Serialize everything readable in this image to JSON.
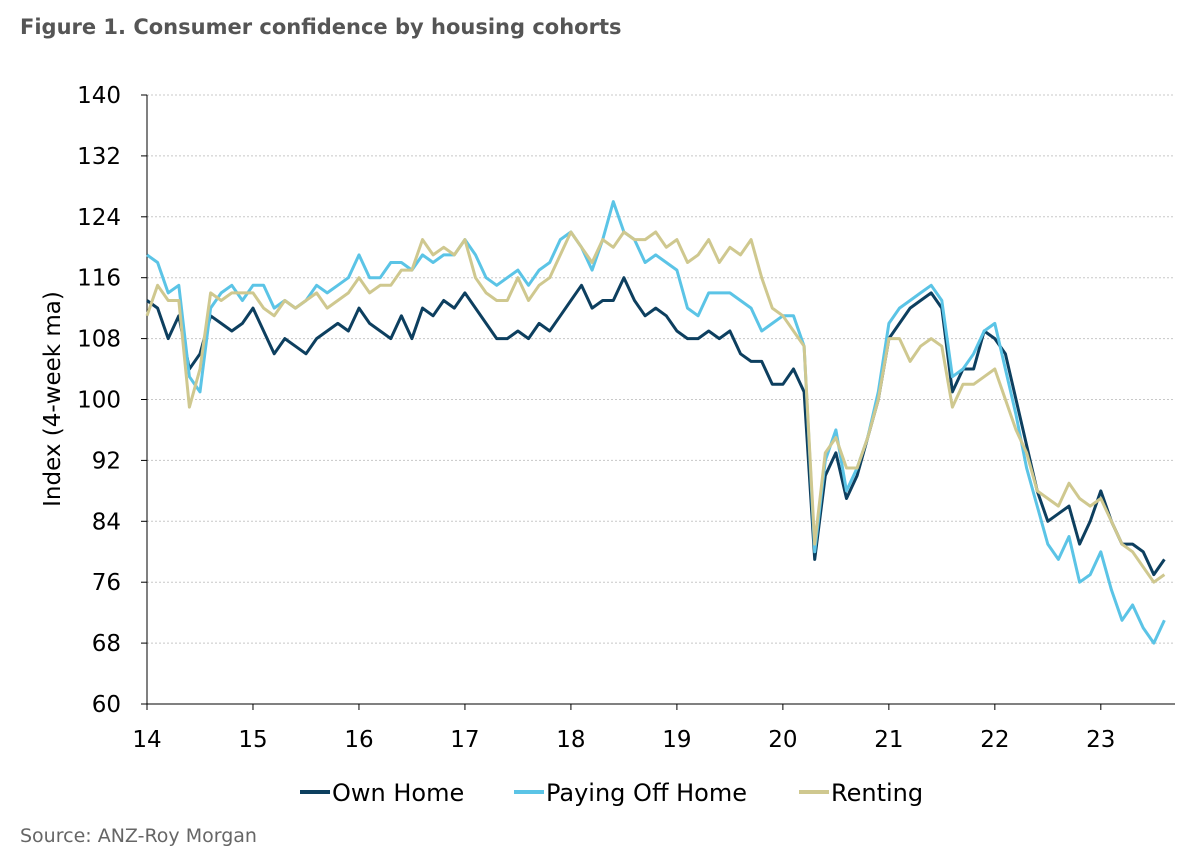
{
  "chart_data": {
    "type": "line",
    "title": "Figure 1. Consumer confidence by housing cohorts",
    "y_label": "Index (4-week ma)",
    "source": "Source: ANZ-Roy Morgan",
    "x": [
      14.0,
      14.1,
      14.2,
      14.3,
      14.4,
      14.5,
      14.6,
      14.7,
      14.8,
      14.9,
      15.0,
      15.1,
      15.2,
      15.3,
      15.4,
      15.5,
      15.6,
      15.7,
      15.8,
      15.9,
      16.0,
      16.1,
      16.2,
      16.3,
      16.4,
      16.5,
      16.6,
      16.7,
      16.8,
      16.9,
      17.0,
      17.1,
      17.2,
      17.3,
      17.4,
      17.5,
      17.6,
      17.7,
      17.8,
      17.9,
      18.0,
      18.1,
      18.2,
      18.3,
      18.4,
      18.5,
      18.6,
      18.7,
      18.8,
      18.9,
      19.0,
      19.1,
      19.2,
      19.3,
      19.4,
      19.5,
      19.6,
      19.7,
      19.8,
      19.9,
      20.0,
      20.1,
      20.2,
      20.3,
      20.4,
      20.5,
      20.6,
      20.7,
      20.8,
      20.9,
      21.0,
      21.1,
      21.2,
      21.3,
      21.4,
      21.5,
      21.6,
      21.7,
      21.8,
      21.9,
      22.0,
      22.1,
      22.2,
      22.3,
      22.4,
      22.5,
      22.6,
      22.7,
      22.8,
      22.9,
      23.0,
      23.1,
      23.2,
      23.3,
      23.4,
      23.5,
      23.6
    ],
    "series": [
      {
        "name": "Own Home",
        "color": "#0d3f5f",
        "values": [
          113,
          112,
          108,
          111,
          104,
          106,
          111,
          110,
          109,
          110,
          112,
          109,
          106,
          108,
          107,
          106,
          108,
          109,
          110,
          109,
          112,
          110,
          109,
          108,
          111,
          108,
          112,
          111,
          113,
          112,
          114,
          112,
          110,
          108,
          108,
          109,
          108,
          110,
          109,
          111,
          113,
          115,
          112,
          113,
          113,
          116,
          113,
          111,
          112,
          111,
          109,
          108,
          108,
          109,
          108,
          109,
          106,
          105,
          105,
          102,
          102,
          104,
          101,
          79,
          90,
          93,
          87,
          90,
          95,
          100,
          108,
          110,
          112,
          113,
          114,
          112,
          101,
          104,
          104,
          109,
          108,
          106,
          100,
          94,
          88,
          84,
          85,
          86,
          81,
          84,
          88,
          84,
          81,
          81,
          80,
          77,
          79
        ]
      },
      {
        "name": "Paying Off Home",
        "color": "#5bc4e6",
        "values": [
          119,
          118,
          114,
          115,
          103,
          101,
          112,
          114,
          115,
          113,
          115,
          115,
          112,
          113,
          112,
          113,
          115,
          114,
          115,
          116,
          119,
          116,
          116,
          118,
          118,
          117,
          119,
          118,
          119,
          119,
          121,
          119,
          116,
          115,
          116,
          117,
          115,
          117,
          118,
          121,
          122,
          120,
          117,
          121,
          126,
          122,
          121,
          118,
          119,
          118,
          117,
          112,
          111,
          114,
          114,
          114,
          113,
          112,
          109,
          110,
          111,
          111,
          107,
          80,
          92,
          96,
          88,
          91,
          95,
          101,
          110,
          112,
          113,
          114,
          115,
          113,
          103,
          104,
          106,
          109,
          110,
          104,
          98,
          91,
          86,
          81,
          79,
          82,
          76,
          77,
          80,
          75,
          71,
          73,
          70,
          68,
          71
        ]
      },
      {
        "name": "Renting",
        "color": "#cfc88f",
        "values": [
          111,
          115,
          113,
          113,
          99,
          104,
          114,
          113,
          114,
          114,
          114,
          112,
          111,
          113,
          112,
          113,
          114,
          112,
          113,
          114,
          116,
          114,
          115,
          115,
          117,
          117,
          121,
          119,
          120,
          119,
          121,
          116,
          114,
          113,
          113,
          116,
          113,
          115,
          116,
          119,
          122,
          120,
          118,
          121,
          120,
          122,
          121,
          121,
          122,
          120,
          121,
          118,
          119,
          121,
          118,
          120,
          119,
          121,
          116,
          112,
          111,
          109,
          107,
          81,
          93,
          95,
          91,
          91,
          95,
          100,
          108,
          108,
          105,
          107,
          108,
          107,
          99,
          102,
          102,
          103,
          104,
          100,
          96,
          93,
          88,
          87,
          86,
          89,
          87,
          86,
          87,
          84,
          81,
          80,
          78,
          76,
          77
        ]
      }
    ],
    "xlim": [
      14,
      23.7
    ],
    "xticks": [
      14,
      15,
      16,
      17,
      18,
      19,
      20,
      21,
      22,
      23
    ],
    "ylim": [
      60,
      140
    ],
    "yticks": [
      60,
      68,
      76,
      84,
      92,
      100,
      108,
      116,
      124,
      132,
      140
    ],
    "grid": true,
    "legend": "bottom"
  }
}
